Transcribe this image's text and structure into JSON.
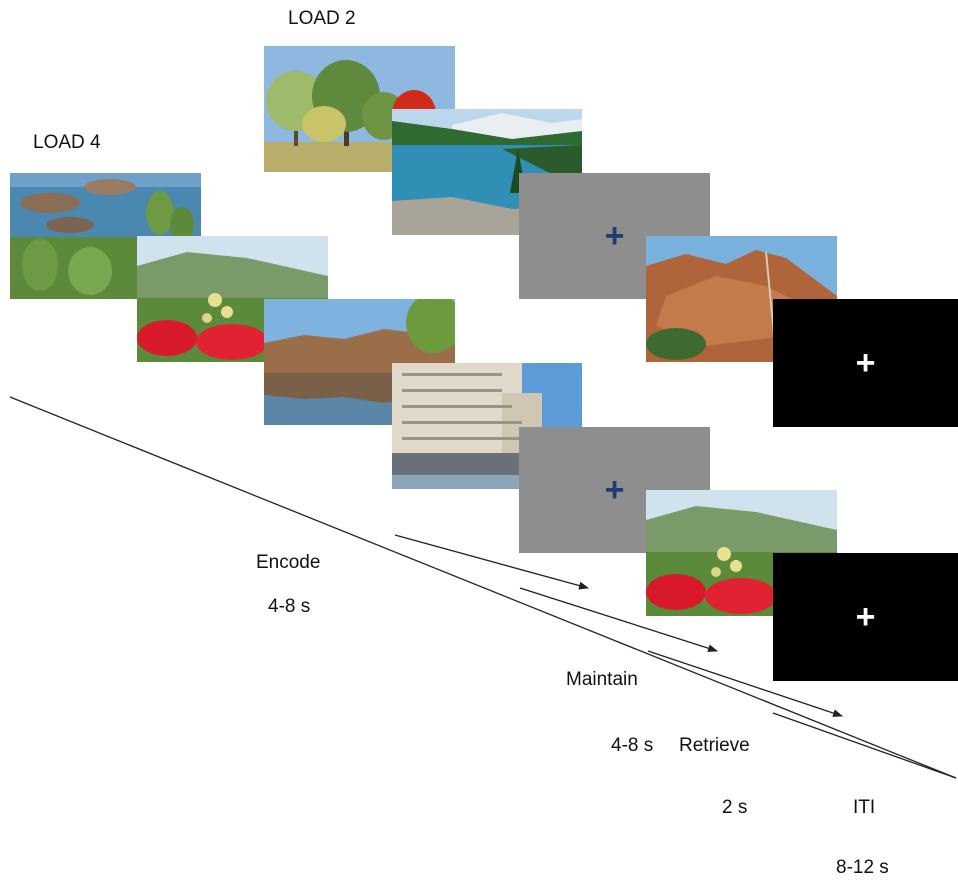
{
  "conditions": {
    "load2": "LOAD 2",
    "load4": "LOAD 4"
  },
  "phases": {
    "encode": {
      "label": "Encode",
      "duration": "4-8 s"
    },
    "maintain": {
      "label": "Maintain",
      "duration": "4-8 s"
    },
    "retrieve": {
      "label": "Retrieve",
      "duration": "2 s"
    },
    "iti": {
      "label": "ITI",
      "duration": "8-12 s"
    }
  },
  "fixation_symbol": "+",
  "colors": {
    "gray_screen": "#8e8e8e",
    "gray_cross": "#1f3d73",
    "black_screen": "#000000",
    "black_cross": "#ffffff",
    "line": "#222222"
  },
  "stimuli": {
    "load2": [
      "autumn-trees",
      "mountain-lake"
    ],
    "load4": [
      "rocky-coast-cactus",
      "red-flowers-field",
      "canyon-river-reflection",
      "waterfront-apartments"
    ],
    "probe_load2": "red-rock-mountain",
    "probe_load4": "red-flowers-field"
  }
}
